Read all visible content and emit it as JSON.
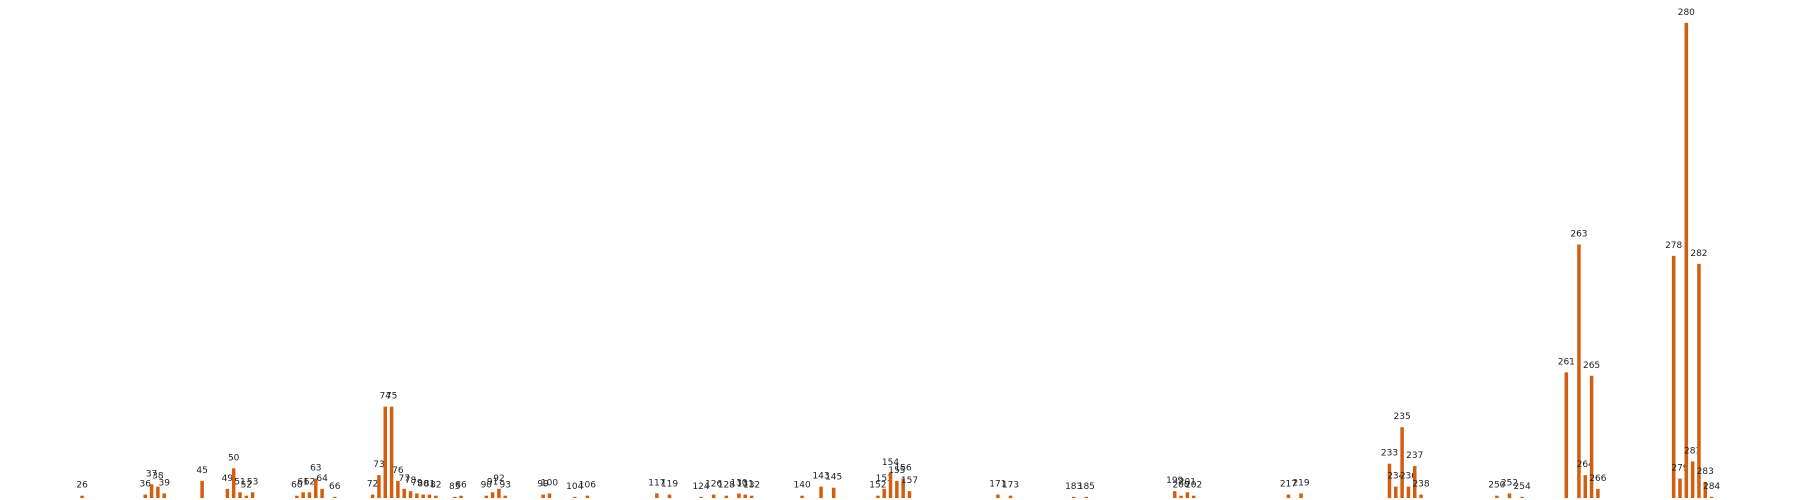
{
  "chart_data": {
    "type": "bar",
    "color": "#d35f0e",
    "x": [
      26,
      36,
      37,
      38,
      39,
      45,
      49,
      50,
      51,
      52,
      53,
      60,
      61,
      62,
      63,
      64,
      66,
      72,
      73,
      74,
      75,
      76,
      77,
      78,
      79,
      80,
      81,
      82,
      85,
      86,
      90,
      91,
      92,
      93,
      99,
      100,
      104,
      106,
      117,
      119,
      124,
      126,
      128,
      130,
      131,
      132,
      140,
      143,
      145,
      152,
      153,
      154,
      155,
      156,
      157,
      171,
      173,
      183,
      185,
      199,
      200,
      201,
      202,
      217,
      219,
      233,
      234,
      235,
      236,
      237,
      238,
      250,
      252,
      254,
      261,
      263,
      264,
      265,
      266,
      278,
      279,
      280,
      281,
      282,
      283,
      284
    ],
    "values": [
      2,
      3,
      12,
      10,
      4,
      15,
      8,
      26,
      5,
      2,
      5,
      2,
      5,
      5,
      17,
      8,
      1,
      3,
      20,
      80,
      80,
      15,
      8,
      6,
      4,
      3,
      3,
      2,
      1,
      2,
      2,
      5,
      8,
      2,
      3,
      4,
      1,
      2,
      4,
      3,
      1,
      3,
      2,
      4,
      3,
      2,
      2,
      10,
      9,
      2,
      8,
      22,
      15,
      17,
      6,
      3,
      2,
      1,
      1,
      6,
      2,
      5,
      2,
      3,
      4,
      30,
      10,
      62,
      10,
      28,
      3,
      2,
      4,
      1,
      110,
      222,
      20,
      107,
      8,
      212,
      17,
      416,
      32,
      205,
      14,
      1
    ],
    "xlim": [
      13,
      298
    ],
    "ylim": [
      0,
      436
    ]
  }
}
